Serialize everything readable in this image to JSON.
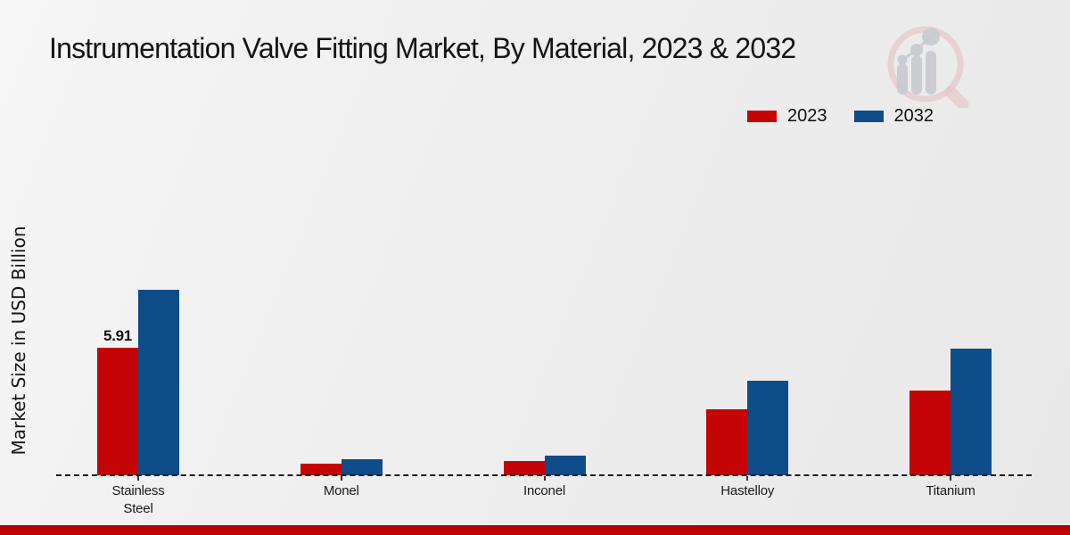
{
  "page": {
    "title": "Instrumentation Valve Fitting Market, By Material, 2023 & 2032",
    "ylabel": "Market Size in USD Billion"
  },
  "legend": [
    {
      "label": "2023",
      "color": "#c50505"
    },
    {
      "label": "2032",
      "color": "#0e4c8a"
    }
  ],
  "chart_data": {
    "type": "bar",
    "title": "Instrumentation Valve Fitting Market, By Material, 2023 & 2032",
    "xlabel": "",
    "ylabel": "Market Size in USD Billion",
    "categories": [
      "Stainless Steel",
      "Monel",
      "Inconel",
      "Hastelloy",
      "Titanium"
    ],
    "series": [
      {
        "name": "2023",
        "color": "#c50505",
        "values": [
          5.91,
          0.54,
          0.66,
          3.06,
          3.93
        ]
      },
      {
        "name": "2032",
        "color": "#0e4c8a",
        "values": [
          8.6,
          0.74,
          0.91,
          4.38,
          5.87
        ]
      }
    ],
    "value_labels": {
      "series": "2023",
      "labels": [
        "5.91",
        "",
        "",
        "",
        ""
      ]
    },
    "ylim": [
      0,
      9
    ],
    "grid": false,
    "axis_visible": false,
    "baseline_style": "dashed",
    "legend_position": "top-right"
  },
  "branding": {
    "logo_icon": "magnifier-bar-chart-logo",
    "accent_bar_color": "#c40404"
  }
}
